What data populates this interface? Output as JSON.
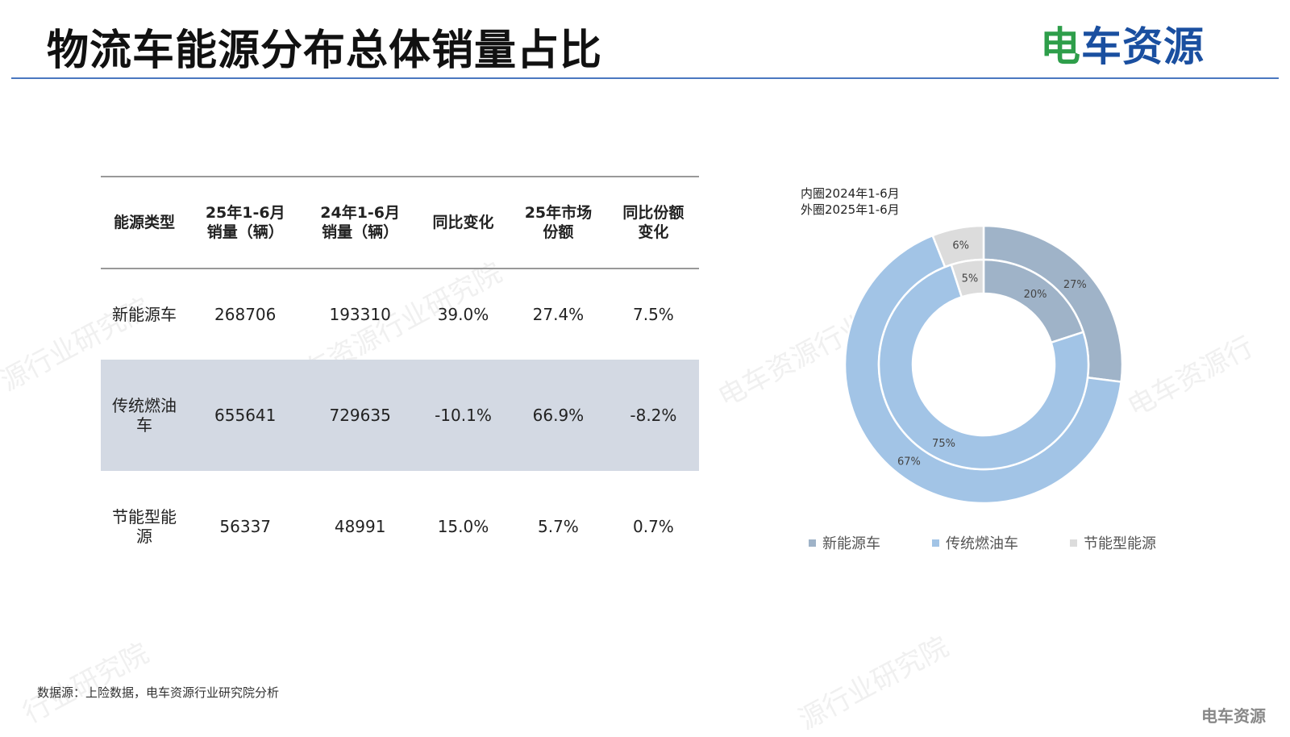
{
  "header": {
    "title": "物流车能源分布总体销量占比",
    "logo_a": "电",
    "logo_b": "车资源"
  },
  "table": {
    "headers": [
      [
        "能源类型"
      ],
      [
        "25年1-6月",
        "销量（辆）"
      ],
      [
        "24年1-6月",
        "销量（辆）"
      ],
      [
        "同比变化"
      ],
      [
        "25年市场",
        "份额"
      ],
      [
        "同比份额",
        "变化"
      ]
    ],
    "rows": [
      {
        "type": [
          "新能源车"
        ],
        "sales25": "268706",
        "sales24": "193310",
        "yoy": "39.0%",
        "share25": "27.4%",
        "share_change": "7.5%"
      },
      {
        "type": [
          "传统燃油",
          "车"
        ],
        "sales25": "655641",
        "sales24": "729635",
        "yoy": "-10.1%",
        "share25": "66.9%",
        "share_change": "-8.2%"
      },
      {
        "type": [
          "节能型能",
          "源"
        ],
        "sales25": "56337",
        "sales24": "48991",
        "yoy": "15.0%",
        "share25": "5.7%",
        "share_change": "0.7%"
      }
    ]
  },
  "chart_note": {
    "inner": "内圈2024年1-6月",
    "outer": "外圈2025年1-6月"
  },
  "chart_data": {
    "type": "pie",
    "categories": [
      "新能源车",
      "传统燃油车",
      "节能型能源"
    ],
    "series": [
      {
        "name": "外圈2025年1-6月",
        "values": [
          27,
          67,
          6
        ],
        "labels": [
          "27%",
          "67%",
          "6%"
        ]
      },
      {
        "name": "内圈2024年1-6月",
        "values": [
          20,
          75,
          5
        ],
        "labels": [
          "20%",
          "75%",
          "5%"
        ]
      }
    ],
    "colors": [
      "#9fb3c8",
      "#a2c4e6",
      "#dcdcdc"
    ],
    "legend_position": "bottom"
  },
  "source": "数据源：上险数据，电车资源行业研究院分析",
  "watermark": [
    "电车资源行业研究院",
    "源行业研究院",
    "行业研究院",
    "电车资源行业",
    "电车资源行",
    "源行业研究院"
  ],
  "mini_logo": "电车资源"
}
